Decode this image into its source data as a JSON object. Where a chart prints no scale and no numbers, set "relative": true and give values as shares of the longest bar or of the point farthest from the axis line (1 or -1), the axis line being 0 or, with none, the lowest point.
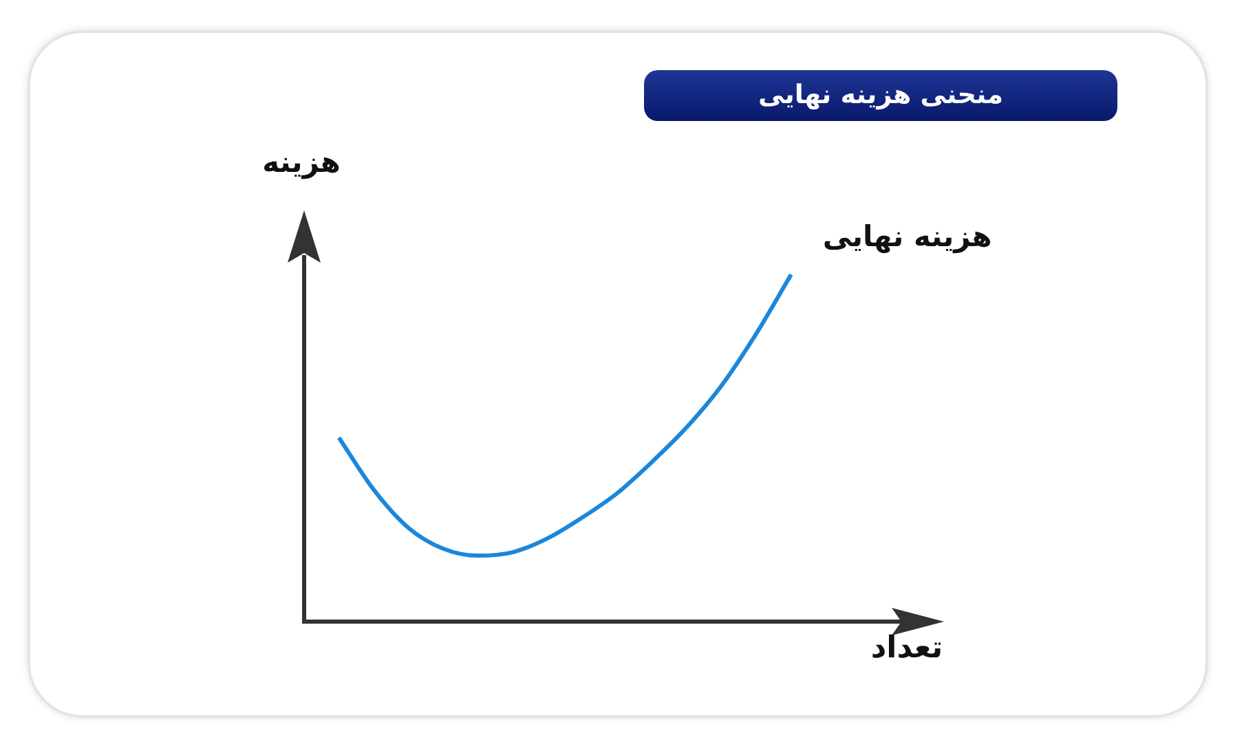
{
  "chart_data": {
    "type": "line",
    "title": "منحنی هزینه نهایی",
    "xlabel": "تعداد",
    "ylabel": "هزینه",
    "relative": true,
    "categories": [
      null,
      null,
      null,
      null,
      null,
      null,
      null,
      null,
      null,
      null,
      null,
      null,
      null,
      null,
      null,
      null,
      null,
      null,
      null
    ],
    "series": [
      {
        "name": "هزینه نهایی",
        "color": "#1b87db",
        "values": [
          null,
          0.53,
          0.38,
          0.27,
          0.21,
          0.19,
          0.2,
          0.24,
          0.3,
          0.37,
          0.46,
          0.56,
          0.68,
          0.83,
          1,
          null,
          null,
          null,
          null
        ]
      }
    ]
  }
}
